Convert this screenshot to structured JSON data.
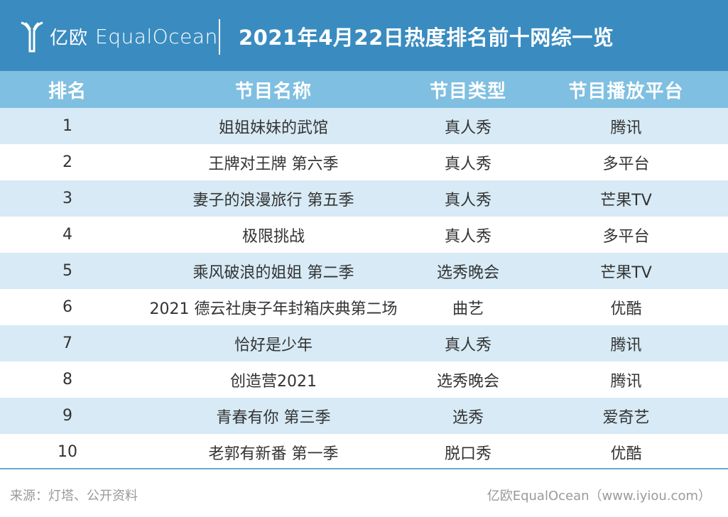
{
  "header": {
    "logo_cn": "亿欧",
    "logo_en": "EqualOcean",
    "logo_icon": "equalocean-y-logo-icon",
    "title": "2021年4月22日热度排名前十网综一览"
  },
  "table": {
    "columns": [
      "排名",
      "节目名称",
      "节目类型",
      "节目播放平台"
    ],
    "rows": [
      [
        "1",
        "姐姐妹妹的武馆",
        "真人秀",
        "腾讯"
      ],
      [
        "2",
        "王牌对王牌 第六季",
        "真人秀",
        "多平台"
      ],
      [
        "3",
        "妻子的浪漫旅行 第五季",
        "真人秀",
        "芒果TV"
      ],
      [
        "4",
        "极限挑战",
        "真人秀",
        "多平台"
      ],
      [
        "5",
        "乘风破浪的姐姐 第二季",
        "选秀晚会",
        "芒果TV"
      ],
      [
        "6",
        "2021 德云社庚子年封箱庆典第二场",
        "曲艺",
        "优酷"
      ],
      [
        "7",
        "恰好是少年",
        "真人秀",
        "腾讯"
      ],
      [
        "8",
        "创造营2021",
        "选秀晚会",
        "腾讯"
      ],
      [
        "9",
        "青春有你 第三季",
        "选秀",
        "爱奇艺"
      ],
      [
        "10",
        "老郭有新番 第一季",
        "脱口秀",
        "优酷"
      ]
    ]
  },
  "footer": {
    "source": "来源：灯塔、公开资料",
    "credit": "亿欧EqualOcean（www.iyiou.com）"
  },
  "colors": {
    "header_bg": "#3a8cc0",
    "table_header_bg": "#7fbfe1",
    "row_stripe": "#d7eaf5"
  }
}
